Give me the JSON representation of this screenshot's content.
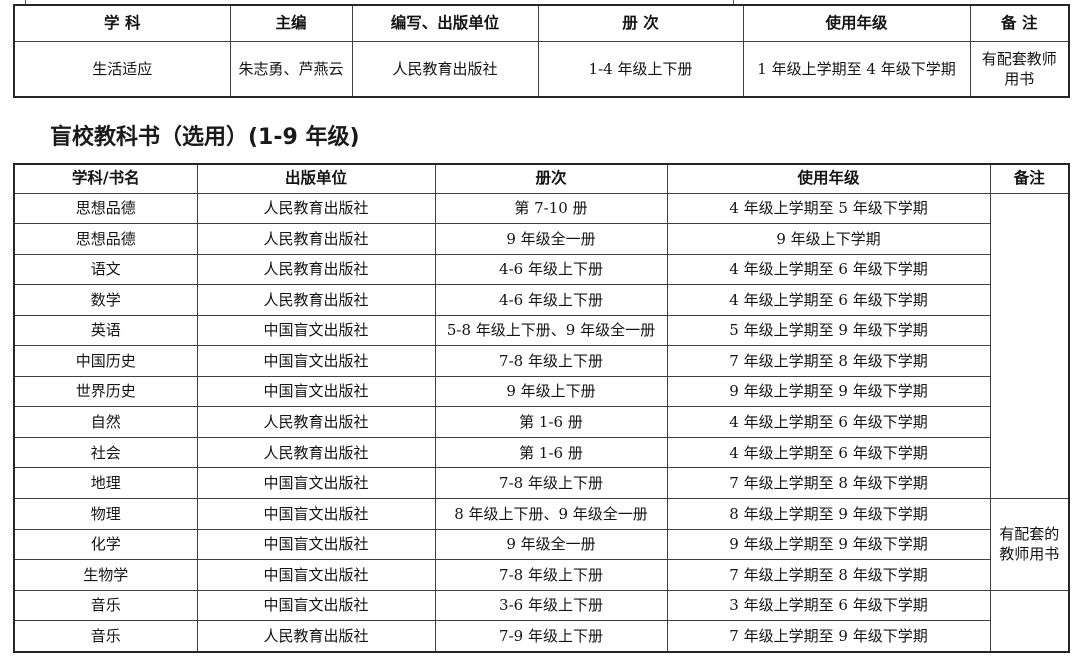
{
  "section_title": "盲校教科书（选用）(1-9 年级)",
  "table1": {
    "headers": [
      "学 科",
      "主编",
      "编写、出版单位",
      "册 次",
      "使用年级",
      "备 注"
    ],
    "rows": [
      [
        "生活适应",
        "朱志勇、芦燕云",
        "人民教育出版社",
        "1-4 年级上下册",
        "1 年级上学期至 4 年级下学期",
        "有配套教师用书"
      ]
    ]
  },
  "table2": {
    "headers": [
      "学科/书名",
      "出版单位",
      "册次",
      "使用年级",
      "备注"
    ],
    "rows": [
      [
        "思想品德",
        "人民教育出版社",
        "第 7-10 册",
        "4 年级上学期至 5 年级下学期"
      ],
      [
        "思想品德",
        "人民教育出版社",
        "9 年级全一册",
        "9 年级上下学期"
      ],
      [
        "语文",
        "人民教育出版社",
        "4-6 年级上下册",
        "4 年级上学期至 6 年级下学期"
      ],
      [
        "数学",
        "人民教育出版社",
        "4-6 年级上下册",
        "4 年级上学期至 6 年级下学期"
      ],
      [
        "英语",
        "中国盲文出版社",
        "5-8 年级上下册、9 年级全一册",
        "5 年级上学期至 9 年级下学期"
      ],
      [
        "中国历史",
        "中国盲文出版社",
        "7-8 年级上下册",
        "7 年级上学期至 8 年级下学期"
      ],
      [
        "世界历史",
        "中国盲文出版社",
        "9 年级上下册",
        "9 年级上学期至 9 年级下学期"
      ],
      [
        "自然",
        "人民教育出版社",
        "第 1-6 册",
        "4 年级上学期至 6 年级下学期"
      ],
      [
        "社会",
        "人民教育出版社",
        "第 1-6 册",
        "4 年级上学期至 6 年级下学期"
      ],
      [
        "地理",
        "中国盲文出版社",
        "7-8 年级上下册",
        "7 年级上学期至 8 年级下学期"
      ],
      [
        "物理",
        "中国盲文出版社",
        "8 年级上下册、9 年级全一册",
        "8 年级上学期至 9 年级下学期"
      ],
      [
        "化学",
        "中国盲文出版社",
        "9 年级全一册",
        "9 年级上学期至 9 年级下学期"
      ],
      [
        "生物学",
        "中国盲文出版社",
        "7-8 年级上下册",
        "7 年级上学期至 8 年级下学期"
      ],
      [
        "音乐",
        "中国盲文出版社",
        "3-6 年级上下册",
        "3 年级上学期至 6 年级下学期"
      ],
      [
        "音乐",
        "人民教育出版社",
        "7-9 年级上下册",
        "7 年级上学期至 9 年级下学期"
      ]
    ],
    "remark_groups": [
      {
        "span": 10,
        "text": ""
      },
      {
        "span": 3,
        "text": "有配套的教师用书"
      },
      {
        "span": 2,
        "text": ""
      }
    ]
  }
}
